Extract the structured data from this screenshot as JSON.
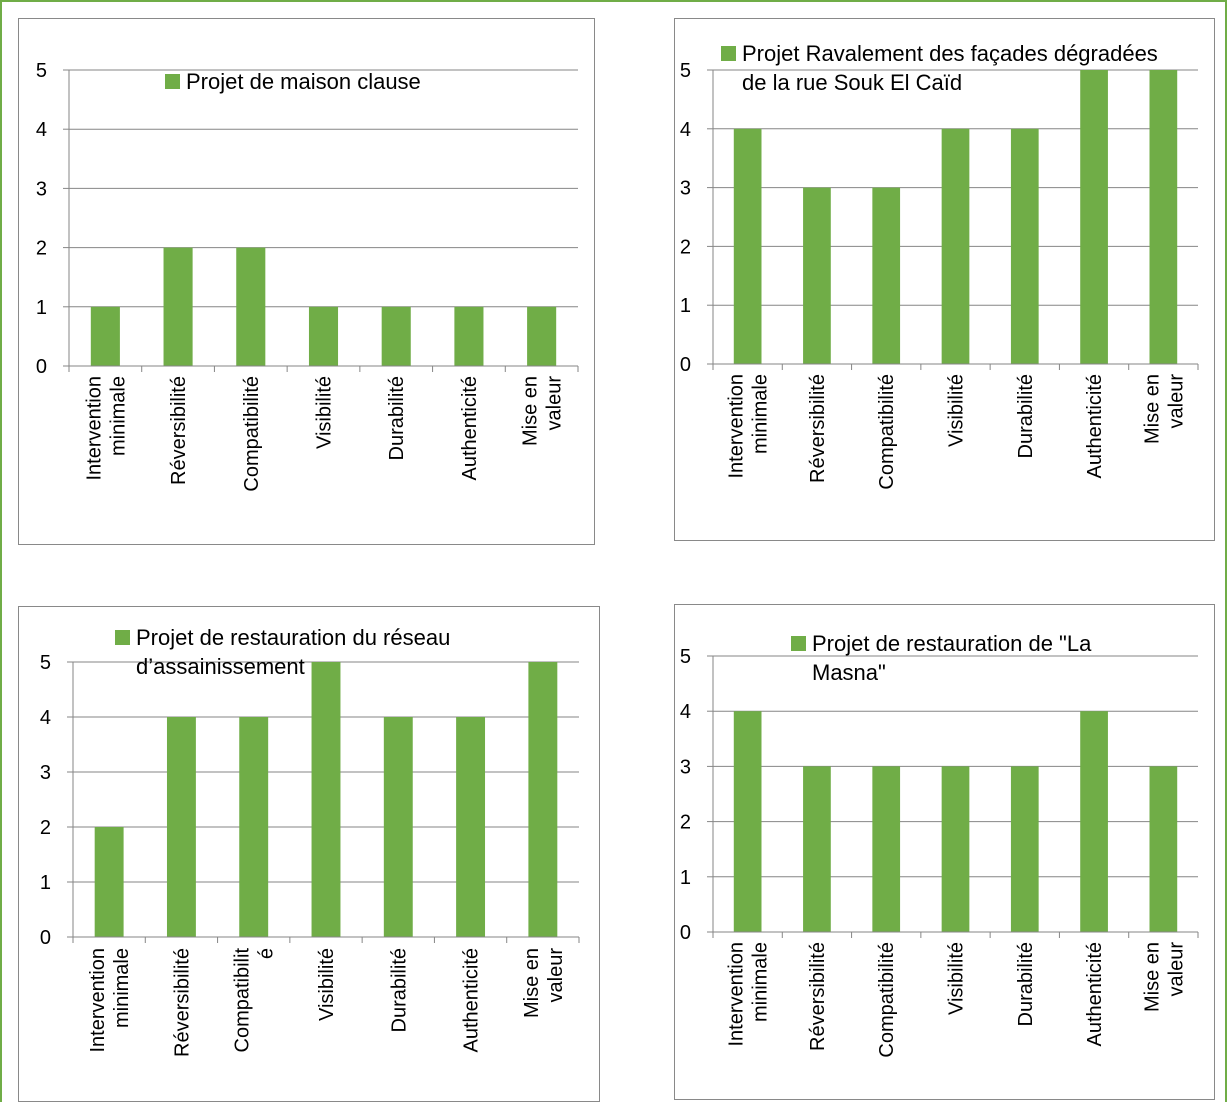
{
  "colors": {
    "bar": "#70ad47",
    "gridline": "#868686",
    "axis": "#868686",
    "page_border": "#70ad47"
  },
  "chart_data": [
    {
      "type": "bar",
      "categories": [
        [
          "Intervention",
          "minimale"
        ],
        [
          "Réversibilité"
        ],
        [
          "Compatibilité"
        ],
        [
          "Visibilité"
        ],
        [
          "Durabilité"
        ],
        [
          "Authenticité"
        ],
        [
          "Mise en",
          "valeur"
        ]
      ],
      "series": [
        {
          "name": "Projet  de maison clause",
          "values": [
            1,
            2,
            2,
            1,
            1,
            1,
            1
          ]
        }
      ],
      "legend_lines": [
        "Projet  de maison clause"
      ],
      "ylim": [
        0,
        5
      ],
      "yticks": [
        0,
        1,
        2,
        3,
        4,
        5
      ],
      "grid": true,
      "legend_position": "top-right"
    },
    {
      "type": "bar",
      "categories": [
        [
          "Intervention",
          "minimale"
        ],
        [
          "Réversibilité"
        ],
        [
          "Compatibilité"
        ],
        [
          "Visibilité"
        ],
        [
          "Durabilité"
        ],
        [
          "Authenticité"
        ],
        [
          "Mise en",
          "valeur"
        ]
      ],
      "series": [
        {
          "name": "Projet Ravalement des façades dégradées de la rue Souk El Caïd",
          "values": [
            4,
            3,
            3,
            4,
            4,
            5,
            5
          ]
        }
      ],
      "legend_lines": [
        "Projet Ravalement des façades dégradées",
        "de la rue Souk El Caïd"
      ],
      "ylim": [
        0,
        5
      ],
      "yticks": [
        0,
        1,
        2,
        3,
        4,
        5
      ],
      "grid": true,
      "legend_position": "top"
    },
    {
      "type": "bar",
      "categories": [
        [
          "Intervention",
          "minimale"
        ],
        [
          "Réversibilité"
        ],
        [
          "Compatibilit",
          "é"
        ],
        [
          "Visibilité"
        ],
        [
          "Durabilité"
        ],
        [
          "Authenticité"
        ],
        [
          "Mise en",
          "valeur"
        ]
      ],
      "series": [
        {
          "name": "Projet de restauration du réseau d’assainissement",
          "values": [
            2,
            4,
            4,
            5,
            4,
            4,
            5
          ]
        }
      ],
      "legend_lines": [
        "Projet de restauration du réseau",
        "d’assainissement"
      ],
      "ylim": [
        0,
        5
      ],
      "yticks": [
        0,
        1,
        2,
        3,
        4,
        5
      ],
      "grid": true,
      "legend_position": "top"
    },
    {
      "type": "bar",
      "categories": [
        [
          "Intervention",
          "minimale"
        ],
        [
          "Réversibilité"
        ],
        [
          "Compatibilité"
        ],
        [
          "Visibilité"
        ],
        [
          "Durabilité"
        ],
        [
          "Authenticité"
        ],
        [
          "Mise en",
          "valeur"
        ]
      ],
      "series": [
        {
          "name": "Projet  de restauration de \"La Masna\"",
          "values": [
            4,
            3,
            3,
            3,
            3,
            4,
            3
          ]
        }
      ],
      "legend_lines": [
        "Projet  de restauration de \"La",
        "Masna\""
      ],
      "ylim": [
        0,
        5
      ],
      "yticks": [
        0,
        1,
        2,
        3,
        4,
        5
      ],
      "grid": true,
      "legend_position": "top"
    }
  ]
}
